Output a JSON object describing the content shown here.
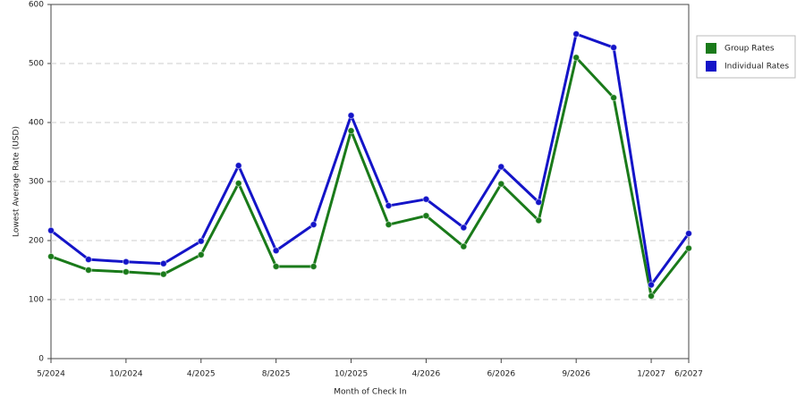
{
  "chart_data": {
    "type": "line",
    "x_label": "Month of Check In",
    "y_label": "Lowest Average Rate (USD)",
    "categories": [
      "5/2024",
      null,
      "10/2024",
      null,
      "4/2025",
      null,
      "8/2025",
      null,
      "10/2025",
      null,
      "4/2026",
      null,
      "6/2026",
      null,
      "9/2026",
      null,
      "1/2027",
      "6/2027"
    ],
    "series": [
      {
        "name": "Group Rates",
        "color": "#1a7a1a",
        "values": [
          173,
          150,
          147,
          143,
          176,
          297,
          156,
          156,
          386,
          227,
          242,
          190,
          296,
          234,
          510,
          442,
          106,
          187
        ]
      },
      {
        "name": "Individual Rates",
        "color": "#1414c8",
        "values": [
          217,
          168,
          164,
          161,
          199,
          327,
          183,
          227,
          412,
          259,
          270,
          222,
          325,
          265,
          550,
          527,
          125,
          212
        ]
      }
    ],
    "ylim": [
      0,
      600
    ],
    "yticks": [
      0,
      100,
      200,
      300,
      400,
      500,
      600
    ],
    "grid": true,
    "legend": "right"
  }
}
